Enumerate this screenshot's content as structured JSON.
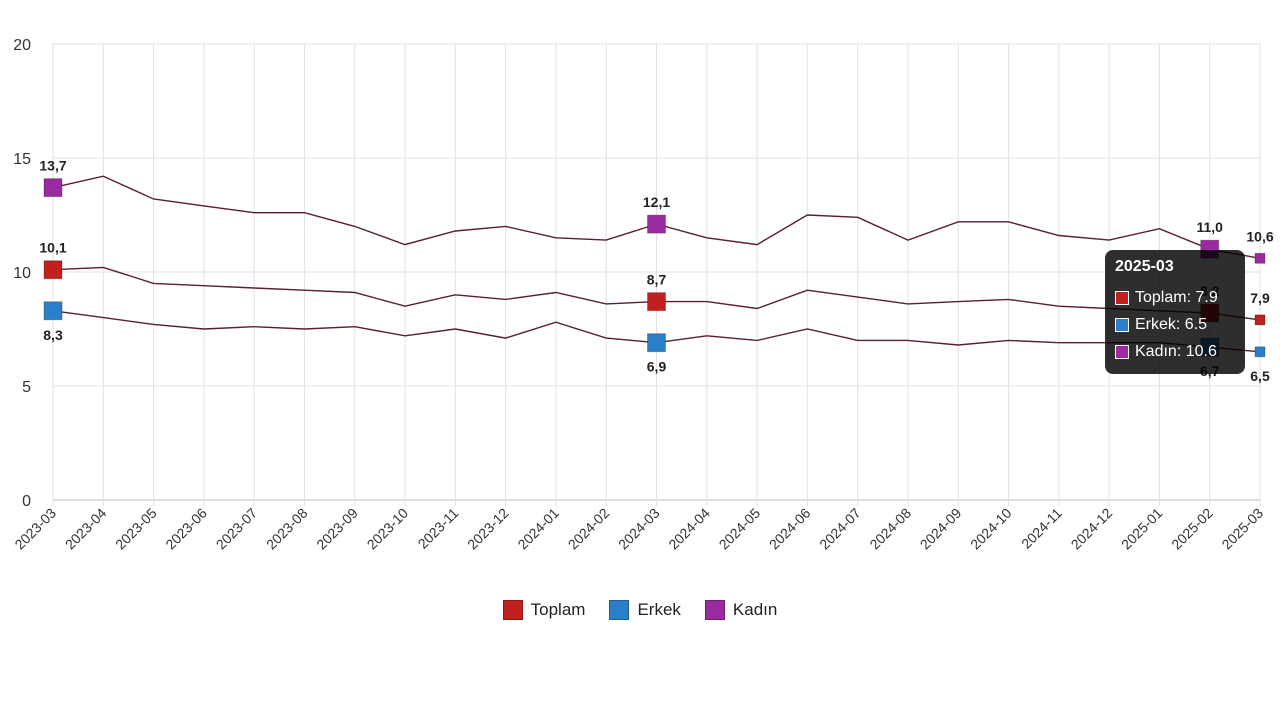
{
  "chart_data": {
    "type": "line",
    "x": [
      "2023-03",
      "2023-04",
      "2023-05",
      "2023-06",
      "2023-07",
      "2023-08",
      "2023-09",
      "2023-10",
      "2023-11",
      "2023-12",
      "2024-01",
      "2024-02",
      "2024-03",
      "2024-04",
      "2024-05",
      "2024-06",
      "2024-07",
      "2024-08",
      "2024-09",
      "2024-10",
      "2024-11",
      "2024-12",
      "2025-01",
      "2025-02",
      "2025-03"
    ],
    "ylim": [
      0,
      20
    ],
    "yticks": [
      "0",
      "5",
      "10",
      "15",
      "20"
    ],
    "grid": true,
    "series": [
      {
        "name": "Toplam",
        "color": "#c0201e",
        "values": [
          10.1,
          10.2,
          9.5,
          9.4,
          9.3,
          9.2,
          9.1,
          8.5,
          9.0,
          8.8,
          9.1,
          8.6,
          8.7,
          8.7,
          8.4,
          9.2,
          8.9,
          8.6,
          8.7,
          8.8,
          8.5,
          8.4,
          8.3,
          8.2,
          7.9
        ]
      },
      {
        "name": "Erkek",
        "color": "#2b7fc8",
        "values": [
          8.3,
          8.0,
          7.7,
          7.5,
          7.6,
          7.5,
          7.6,
          7.2,
          7.5,
          7.1,
          7.8,
          7.1,
          6.9,
          7.2,
          7.0,
          7.5,
          7.0,
          7.0,
          6.8,
          7.0,
          6.9,
          6.9,
          6.9,
          6.7,
          6.5
        ]
      },
      {
        "name": "Kadın",
        "color": "#9a2aa0",
        "values": [
          13.7,
          14.2,
          13.2,
          12.9,
          12.6,
          12.6,
          12.0,
          11.2,
          11.8,
          12.0,
          11.5,
          11.4,
          12.1,
          11.5,
          11.2,
          12.5,
          12.4,
          11.4,
          12.2,
          12.2,
          11.6,
          11.4,
          11.9,
          11.0,
          10.6
        ]
      }
    ],
    "data_labels": [
      {
        "series": 0,
        "index": 0,
        "text": "10,1",
        "pos": "above"
      },
      {
        "series": 0,
        "index": 12,
        "text": "8,7",
        "pos": "above"
      },
      {
        "series": 0,
        "index": 23,
        "text": "8,2",
        "pos": "above"
      },
      {
        "series": 0,
        "index": 24,
        "text": "7,9",
        "pos": "above"
      },
      {
        "series": 1,
        "index": 0,
        "text": "8,3",
        "pos": "below"
      },
      {
        "series": 1,
        "index": 12,
        "text": "6,9",
        "pos": "below"
      },
      {
        "series": 1,
        "index": 23,
        "text": "6,7",
        "pos": "below"
      },
      {
        "series": 1,
        "index": 24,
        "text": "6,5",
        "pos": "below"
      },
      {
        "series": 2,
        "index": 0,
        "text": "13,7",
        "pos": "above"
      },
      {
        "series": 2,
        "index": 12,
        "text": "12,1",
        "pos": "above"
      },
      {
        "series": 2,
        "index": 23,
        "text": "11,0",
        "pos": "above"
      },
      {
        "series": 2,
        "index": 24,
        "text": "10,6",
        "pos": "above"
      }
    ]
  },
  "tooltip": {
    "title": "2025-03",
    "rows": [
      {
        "text": "Toplam: 7.9",
        "color": "#c0201e"
      },
      {
        "text": "Erkek: 6.5",
        "color": "#2b7fc8"
      },
      {
        "text": "Kadın: 10.6",
        "color": "#9a2aa0"
      }
    ]
  },
  "legend": [
    {
      "label": "Toplam",
      "color": "#c0201e"
    },
    {
      "label": "Erkek",
      "color": "#2b7fc8"
    },
    {
      "label": "Kadın",
      "color": "#9a2aa0"
    }
  ]
}
